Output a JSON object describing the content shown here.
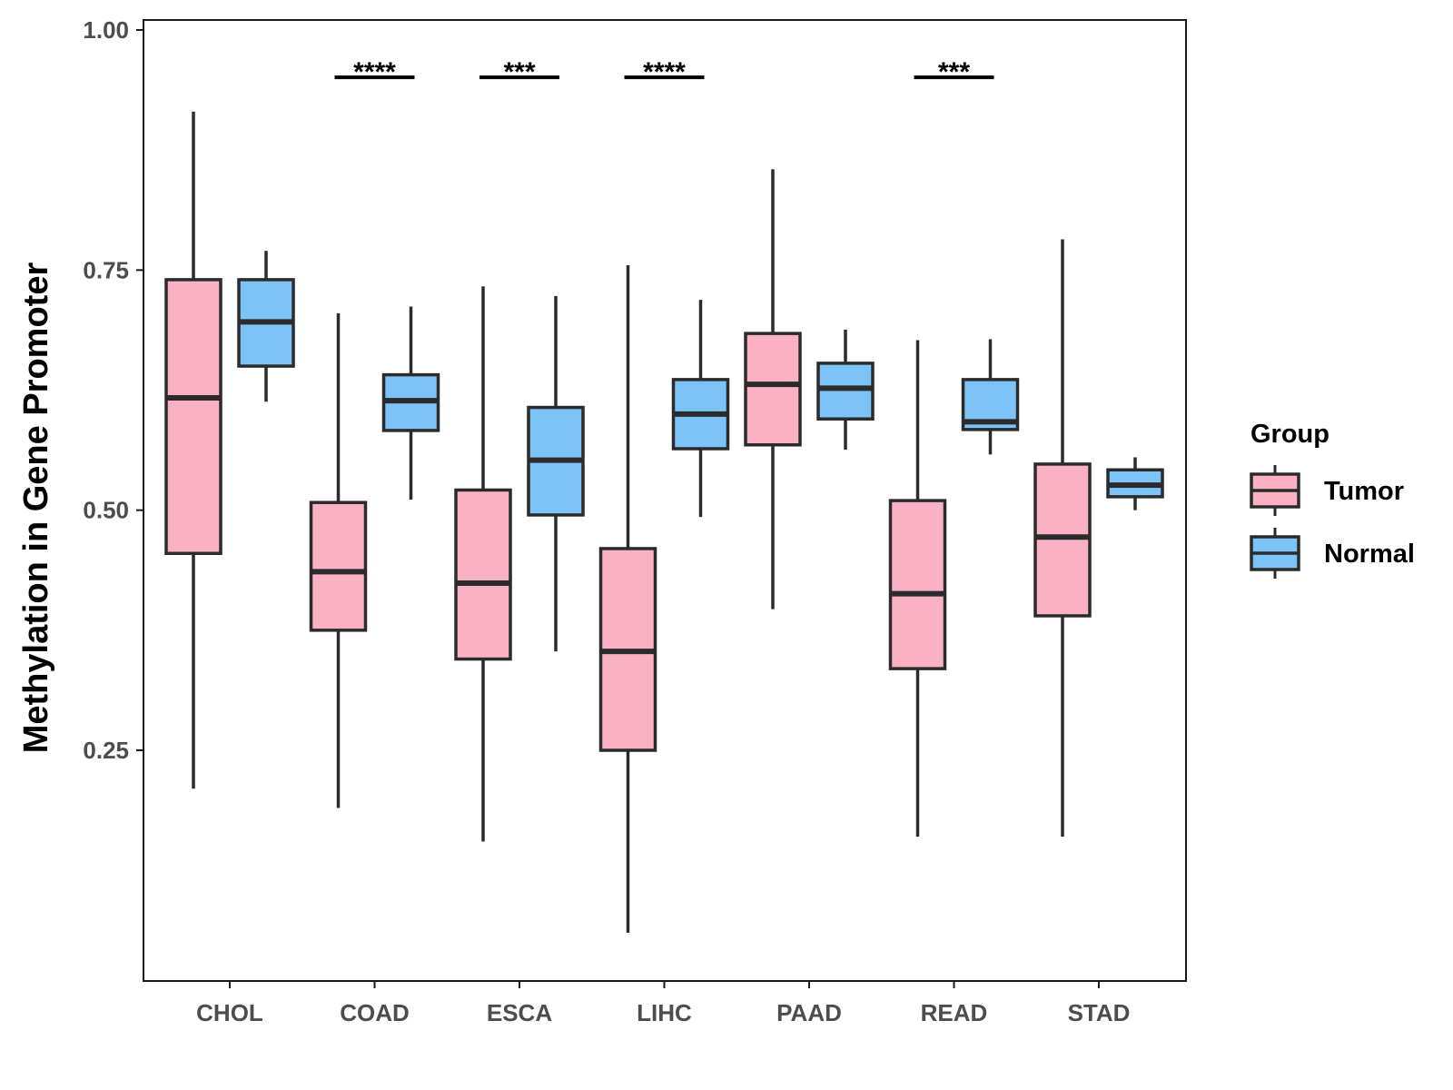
{
  "chart_data": {
    "type": "boxplot",
    "title": "",
    "xlabel": "",
    "ylabel": "Methylation in Gene Promoter",
    "ylim": [
      0.0,
      1.0
    ],
    "yticks": [
      0.25,
      0.5,
      0.75,
      1.0
    ],
    "ytick_labels": [
      "0.25",
      "0.50",
      "0.75",
      "1.00"
    ],
    "categories": [
      "CHOL",
      "COAD",
      "ESCA",
      "LIHC",
      "PAAD",
      "READ",
      "STAD"
    ],
    "legend": {
      "title": "Group",
      "position": "right",
      "entries": [
        {
          "name": "Tumor",
          "color": "#FBB1C4"
        },
        {
          "name": "Normal",
          "color": "#7CC3F7"
        }
      ]
    },
    "series": [
      {
        "name": "Tumor",
        "color": "#FBB1C4",
        "boxes": [
          {
            "min": 0.21,
            "q1": 0.455,
            "median": 0.617,
            "q3": 0.74,
            "max": 0.915
          },
          {
            "min": 0.19,
            "q1": 0.375,
            "median": 0.436,
            "q3": 0.508,
            "max": 0.705
          },
          {
            "min": 0.155,
            "q1": 0.345,
            "median": 0.424,
            "q3": 0.521,
            "max": 0.733
          },
          {
            "min": 0.06,
            "q1": 0.25,
            "median": 0.353,
            "q3": 0.46,
            "max": 0.755
          },
          {
            "min": 0.397,
            "q1": 0.568,
            "median": 0.631,
            "q3": 0.684,
            "max": 0.855
          },
          {
            "min": 0.16,
            "q1": 0.335,
            "median": 0.413,
            "q3": 0.51,
            "max": 0.677
          },
          {
            "min": 0.16,
            "q1": 0.39,
            "median": 0.472,
            "q3": 0.548,
            "max": 0.782
          }
        ]
      },
      {
        "name": "Normal",
        "color": "#7CC3F7",
        "boxes": [
          {
            "min": 0.613,
            "q1": 0.65,
            "median": 0.696,
            "q3": 0.74,
            "max": 0.77
          },
          {
            "min": 0.511,
            "q1": 0.583,
            "median": 0.614,
            "q3": 0.641,
            "max": 0.712
          },
          {
            "min": 0.353,
            "q1": 0.495,
            "median": 0.552,
            "q3": 0.607,
            "max": 0.723
          },
          {
            "min": 0.493,
            "q1": 0.564,
            "median": 0.6,
            "q3": 0.636,
            "max": 0.719
          },
          {
            "min": 0.563,
            "q1": 0.595,
            "median": 0.627,
            "q3": 0.653,
            "max": 0.688
          },
          {
            "min": 0.558,
            "q1": 0.584,
            "median": 0.592,
            "q3": 0.636,
            "max": 0.678
          },
          {
            "min": 0.5,
            "q1": 0.514,
            "median": 0.526,
            "q3": 0.542,
            "max": 0.555
          }
        ]
      }
    ],
    "significance": [
      {
        "category": "CHOL",
        "label": ""
      },
      {
        "category": "COAD",
        "label": "****"
      },
      {
        "category": "ESCA",
        "label": "***"
      },
      {
        "category": "LIHC",
        "label": "****"
      },
      {
        "category": "PAAD",
        "label": ""
      },
      {
        "category": "READ",
        "label": "***"
      },
      {
        "category": "STAD",
        "label": ""
      }
    ],
    "significance_level": 0.962
  }
}
